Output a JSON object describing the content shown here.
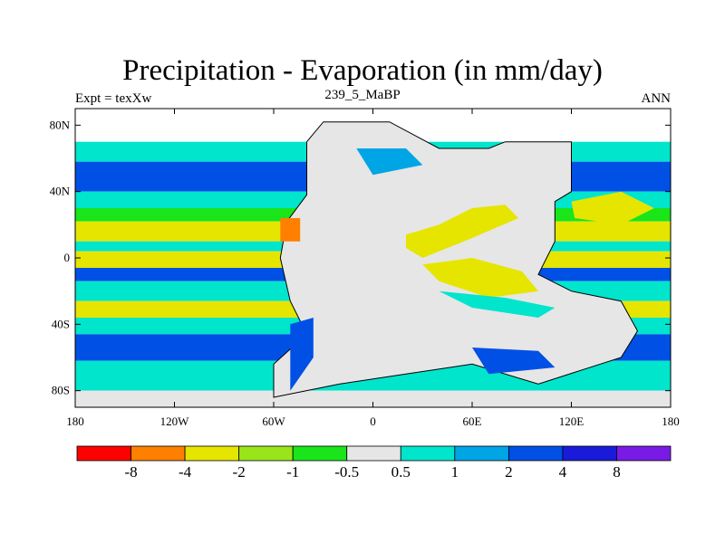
{
  "header": {
    "title": "Precipitation - Evaporation (in mm/day)",
    "left_label": "Expt = texXw",
    "center_label": "239_5_MaBP",
    "right_label": "ANN"
  },
  "chart_data": {
    "type": "heatmap",
    "title": "Precipitation - Evaporation (in mm/day)",
    "xlim": [
      -180,
      180
    ],
    "ylim": [
      -90,
      90
    ],
    "x_ticks": [
      {
        "value": -180,
        "label": "180"
      },
      {
        "value": -120,
        "label": "120W"
      },
      {
        "value": -60,
        "label": "60W"
      },
      {
        "value": 0,
        "label": "0"
      },
      {
        "value": 60,
        "label": "60E"
      },
      {
        "value": 120,
        "label": "120E"
      },
      {
        "value": 180,
        "label": "180"
      }
    ],
    "y_ticks": [
      {
        "value": 80,
        "label": "80N"
      },
      {
        "value": 40,
        "label": "40N"
      },
      {
        "value": 0,
        "label": "0"
      },
      {
        "value": -40,
        "label": "40S"
      },
      {
        "value": -80,
        "label": "80S"
      }
    ],
    "colorbar": {
      "colors": [
        "#ff0000",
        "#ff7f00",
        "#e5e500",
        "#99e51a",
        "#19e51a",
        "#e6e6e6",
        "#00e5cc",
        "#00a5e5",
        "#0050e5",
        "#1a1ad9",
        "#7a1ae5"
      ],
      "levels": [
        "-8",
        "-4",
        "-2",
        "-1",
        "-0.5",
        "0.5",
        "1",
        "2",
        "4",
        "8"
      ]
    },
    "bands": [
      {
        "lat": [
          70,
          90
        ],
        "color": "#ffffff"
      },
      {
        "lat": [
          58,
          70
        ],
        "color": "#00e5cc"
      },
      {
        "lat": [
          40,
          58
        ],
        "color": "#0050e5"
      },
      {
        "lat": [
          30,
          40
        ],
        "color": "#00e5cc"
      },
      {
        "lat": [
          22,
          30
        ],
        "color": "#19e51a"
      },
      {
        "lat": [
          10,
          22
        ],
        "color": "#e5e500"
      },
      {
        "lat": [
          4,
          10
        ],
        "color": "#00e5cc"
      },
      {
        "lat": [
          -6,
          4
        ],
        "color": "#e5e500"
      },
      {
        "lat": [
          -14,
          -6
        ],
        "color": "#0050e5"
      },
      {
        "lat": [
          -26,
          -14
        ],
        "color": "#00e5cc"
      },
      {
        "lat": [
          -36,
          -26
        ],
        "color": "#e5e500"
      },
      {
        "lat": [
          -46,
          -36
        ],
        "color": "#00e5cc"
      },
      {
        "lat": [
          -62,
          -46
        ],
        "color": "#0050e5"
      },
      {
        "lat": [
          -80,
          -62
        ],
        "color": "#00e5cc"
      },
      {
        "lat": [
          -90,
          -80
        ],
        "color": "#e6e6e6"
      }
    ],
    "land": [
      [
        -52,
        22
      ],
      [
        -40,
        38
      ],
      [
        -40,
        70
      ],
      [
        -30,
        82
      ],
      [
        10,
        82
      ],
      [
        40,
        66
      ],
      [
        70,
        66
      ],
      [
        80,
        70
      ],
      [
        120,
        70
      ],
      [
        120,
        40
      ],
      [
        110,
        34
      ],
      [
        110,
        10
      ],
      [
        100,
        -10
      ],
      [
        120,
        -20
      ],
      [
        150,
        -26
      ],
      [
        160,
        -44
      ],
      [
        150,
        -60
      ],
      [
        100,
        -76
      ],
      [
        60,
        -64
      ],
      [
        20,
        -70
      ],
      [
        -20,
        -76
      ],
      [
        -60,
        -84
      ],
      [
        -60,
        -64
      ],
      [
        -40,
        -46
      ],
      [
        -50,
        -26
      ],
      [
        -56,
        0
      ],
      [
        -52,
        22
      ]
    ],
    "land_color": "#e6e6e6",
    "patches": [
      {
        "poly": [
          [
            20,
            14
          ],
          [
            40,
            20
          ],
          [
            60,
            30
          ],
          [
            80,
            32
          ],
          [
            88,
            24
          ],
          [
            60,
            12
          ],
          [
            30,
            0
          ],
          [
            20,
            6
          ]
        ],
        "color": "#e5e500"
      },
      {
        "poly": [
          [
            30,
            -4
          ],
          [
            60,
            0
          ],
          [
            90,
            -8
          ],
          [
            100,
            -20
          ],
          [
            70,
            -24
          ],
          [
            40,
            -14
          ]
        ],
        "color": "#e5e500"
      },
      {
        "poly": [
          [
            40,
            -20
          ],
          [
            80,
            -24
          ],
          [
            110,
            -30
          ],
          [
            100,
            -36
          ],
          [
            60,
            -30
          ]
        ],
        "color": "#00e5cc"
      },
      {
        "poly": [
          [
            120,
            34
          ],
          [
            150,
            40
          ],
          [
            170,
            30
          ],
          [
            150,
            20
          ],
          [
            122,
            24
          ]
        ],
        "color": "#e5e500"
      },
      {
        "poly": [
          [
            -56,
            24
          ],
          [
            -44,
            24
          ],
          [
            -44,
            10
          ],
          [
            -56,
            10
          ]
        ],
        "color": "#ff7f00"
      },
      {
        "poly": [
          [
            -50,
            -40
          ],
          [
            -36,
            -36
          ],
          [
            -36,
            -60
          ],
          [
            -50,
            -80
          ]
        ],
        "color": "#0050e5"
      },
      {
        "poly": [
          [
            -10,
            66
          ],
          [
            20,
            66
          ],
          [
            30,
            56
          ],
          [
            0,
            50
          ]
        ],
        "color": "#00a5e5"
      },
      {
        "poly": [
          [
            60,
            -54
          ],
          [
            100,
            -56
          ],
          [
            110,
            -66
          ],
          [
            70,
            -70
          ]
        ],
        "color": "#0050e5"
      }
    ]
  }
}
